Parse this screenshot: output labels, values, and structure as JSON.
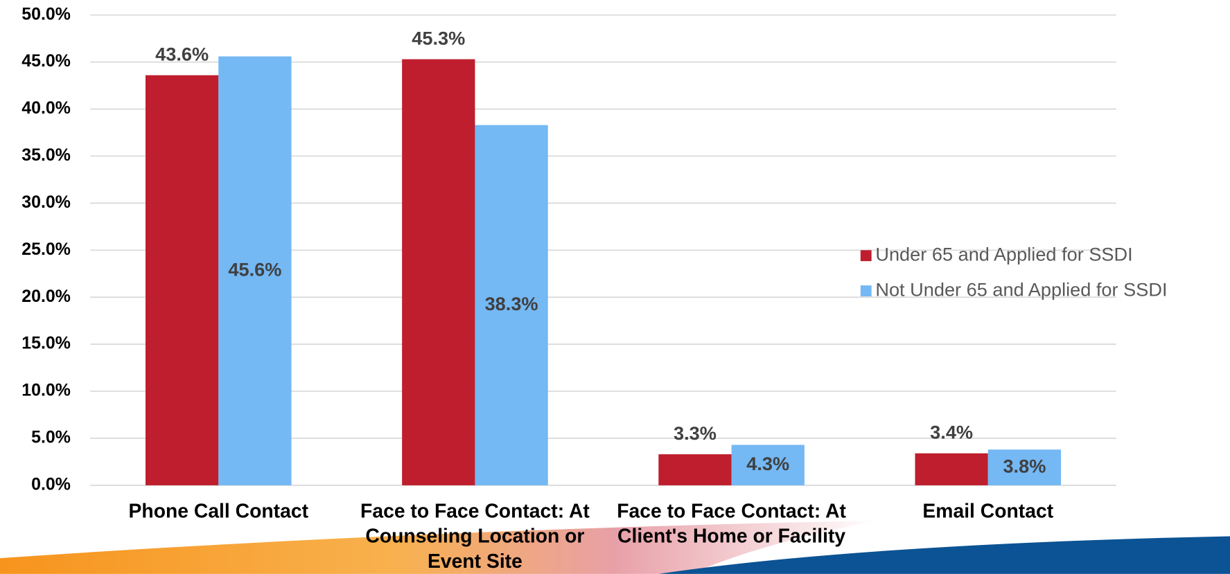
{
  "chart_data": {
    "type": "bar",
    "categories": [
      "Phone Call Contact",
      "Face to Face Contact: At Counseling Location or Event Site",
      "Face to Face Contact: At Client's Home or Facility",
      "Email Contact"
    ],
    "series": [
      {
        "name": "Under 65 and Applied for SSDI",
        "color": "#be1e2d",
        "values": [
          43.6,
          45.3,
          3.3,
          3.4
        ],
        "value_labels": [
          "43.6%",
          "45.3%",
          "3.3%",
          "3.4%"
        ]
      },
      {
        "name": "Not Under 65 and Applied for SSDI",
        "color": "#74b8f4",
        "values": [
          45.6,
          38.3,
          4.3,
          3.8
        ],
        "value_labels": [
          "45.6%",
          "38.3%",
          "4.3%",
          "3.8%"
        ]
      }
    ],
    "ylim": [
      0,
      50
    ],
    "yticks": [
      {
        "value": 0,
        "label": "0.0%"
      },
      {
        "value": 5,
        "label": "5.0%"
      },
      {
        "value": 10,
        "label": "10.0%"
      },
      {
        "value": 15,
        "label": "15.0%"
      },
      {
        "value": 20,
        "label": "20.0%"
      },
      {
        "value": 25,
        "label": "25.0%"
      },
      {
        "value": 30,
        "label": "30.0%"
      },
      {
        "value": 35,
        "label": "35.0%"
      },
      {
        "value": 40,
        "label": "40.0%"
      },
      {
        "value": 45,
        "label": "45.0%"
      },
      {
        "value": 50,
        "label": "50.0%"
      }
    ],
    "grid": true,
    "legend": "right"
  }
}
